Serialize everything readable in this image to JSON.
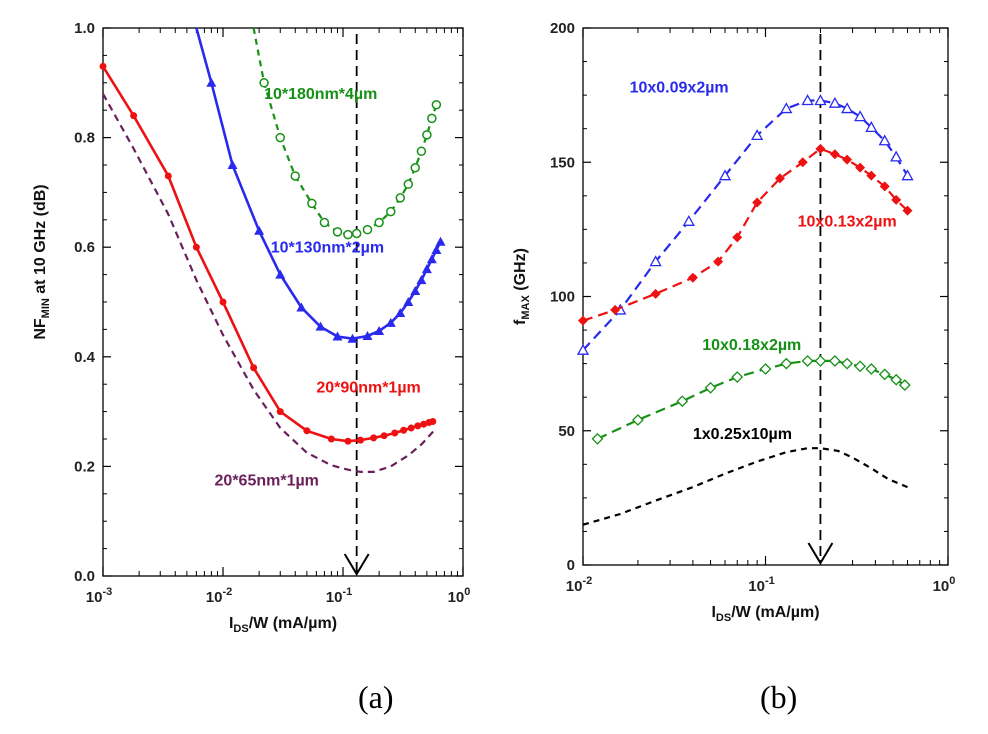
{
  "captions": [
    "(a)",
    "(b)"
  ],
  "colors": {
    "red": "#ee1111",
    "blue": "#2a2aee",
    "green": "#169116",
    "purple": "#6a1f5a",
    "black": "#000000"
  },
  "chart_data": [
    {
      "type": "line",
      "xscale": "log",
      "xlim": [
        0.001,
        1
      ],
      "ylim": [
        0.0,
        1.0
      ],
      "xticks": [
        0.001,
        0.01,
        0.1,
        1
      ],
      "xtick_labels": [
        [
          "10",
          "-3"
        ],
        [
          "10",
          "-2"
        ],
        [
          "10",
          "-1"
        ],
        [
          "10",
          "0"
        ]
      ],
      "yticks": [
        0.0,
        0.2,
        0.4,
        0.6,
        0.8,
        1.0
      ],
      "ytick_labels": [
        "0.0",
        "0.2",
        "0.4",
        "0.6",
        "0.8",
        "1.0"
      ],
      "xlabel": {
        "main": "I",
        "sub": "DS",
        "rest": "/W (mA/µm)"
      },
      "ylabel": {
        "main": "NF",
        "sub": "MIN",
        "rest": " at 10 GHz (dB)"
      },
      "marker_line_x": 0.13,
      "series": [
        {
          "name": "10*180nm*4µm",
          "color": "green",
          "dash": "6,5",
          "marker": "circle-open",
          "x": [
            0.018,
            0.022,
            0.03,
            0.04,
            0.055,
            0.07,
            0.09,
            0.11,
            0.13,
            0.16,
            0.2,
            0.25,
            0.3,
            0.35,
            0.4,
            0.45,
            0.5,
            0.55,
            0.6
          ],
          "y": [
            1.0,
            0.9,
            0.8,
            0.73,
            0.68,
            0.645,
            0.628,
            0.623,
            0.625,
            0.632,
            0.645,
            0.665,
            0.69,
            0.715,
            0.745,
            0.775,
            0.805,
            0.835,
            0.86
          ],
          "label_at": [
            0.022,
            0.87
          ]
        },
        {
          "name": "10*130nm*2µm",
          "color": "blue",
          "dash": "",
          "marker": "triangle",
          "x": [
            0.006,
            0.008,
            0.012,
            0.02,
            0.03,
            0.045,
            0.065,
            0.09,
            0.12,
            0.16,
            0.2,
            0.25,
            0.3,
            0.35,
            0.4,
            0.45,
            0.5,
            0.55,
            0.6,
            0.65
          ],
          "y": [
            1.0,
            0.9,
            0.75,
            0.63,
            0.55,
            0.49,
            0.455,
            0.437,
            0.433,
            0.438,
            0.447,
            0.462,
            0.48,
            0.5,
            0.52,
            0.54,
            0.56,
            0.578,
            0.595,
            0.61
          ],
          "label_at": [
            0.025,
            0.59
          ]
        },
        {
          "name": "20*90nm*1µm",
          "color": "red",
          "dash": "",
          "marker": "dot",
          "x": [
            0.001,
            0.0018,
            0.0035,
            0.006,
            0.01,
            0.018,
            0.03,
            0.05,
            0.08,
            0.11,
            0.14,
            0.18,
            0.22,
            0.27,
            0.32,
            0.37,
            0.42,
            0.47,
            0.52,
            0.56
          ],
          "y": [
            0.93,
            0.84,
            0.73,
            0.6,
            0.5,
            0.38,
            0.3,
            0.265,
            0.25,
            0.246,
            0.248,
            0.252,
            0.256,
            0.261,
            0.266,
            0.27,
            0.274,
            0.277,
            0.28,
            0.282
          ],
          "label_at": [
            0.06,
            0.335
          ]
        },
        {
          "name": "20*65nm*1µm",
          "color": "purple",
          "dash": "7,5",
          "marker": "none",
          "x": [
            0.001,
            0.0018,
            0.0035,
            0.006,
            0.01,
            0.018,
            0.03,
            0.05,
            0.08,
            0.11,
            0.14,
            0.18,
            0.25,
            0.35,
            0.45,
            0.6
          ],
          "y": [
            0.88,
            0.78,
            0.66,
            0.54,
            0.44,
            0.34,
            0.27,
            0.225,
            0.202,
            0.194,
            0.19,
            0.19,
            0.2,
            0.22,
            0.24,
            0.27
          ],
          "label_at": [
            0.0085,
            0.165
          ]
        }
      ]
    },
    {
      "type": "line",
      "xscale": "log",
      "xlim": [
        0.01,
        1
      ],
      "ylim": [
        0,
        200
      ],
      "xticks": [
        0.01,
        0.1,
        1
      ],
      "xtick_labels": [
        [
          "10",
          "-2"
        ],
        [
          "10",
          "-1"
        ],
        [
          "10",
          "0"
        ]
      ],
      "yticks": [
        0,
        50,
        100,
        150,
        200
      ],
      "ytick_labels": [
        "0",
        "50",
        "100",
        "150",
        "200"
      ],
      "xlabel": {
        "main": "I",
        "sub": "DS",
        "rest": "/W (mA/µm)"
      },
      "ylabel": {
        "main": "f",
        "sub": "MAX",
        "rest": "  (GHz)"
      },
      "marker_line_x": 0.2,
      "series": [
        {
          "name": "10x0.09x2µm",
          "color": "blue",
          "dash": "10,6",
          "marker": "triangle-open",
          "x": [
            0.01,
            0.016,
            0.025,
            0.038,
            0.06,
            0.09,
            0.13,
            0.17,
            0.2,
            0.24,
            0.28,
            0.33,
            0.38,
            0.45,
            0.52,
            0.6
          ],
          "y": [
            80,
            95,
            113,
            128,
            145,
            160,
            170,
            173,
            173,
            172,
            170,
            167,
            163,
            158,
            152,
            145
          ],
          "label_at": [
            0.018,
            176
          ]
        },
        {
          "name": "10x0.13x2µm",
          "color": "red",
          "dash": "10,6",
          "marker": "diamond",
          "x": [
            0.01,
            0.015,
            0.025,
            0.04,
            0.055,
            0.07,
            0.09,
            0.12,
            0.16,
            0.2,
            0.24,
            0.28,
            0.33,
            0.38,
            0.45,
            0.52,
            0.6
          ],
          "y": [
            91,
            95,
            101,
            107,
            113,
            122,
            135,
            144,
            150,
            155,
            153,
            151,
            148,
            145,
            141,
            136,
            132
          ],
          "label_at": [
            0.15,
            126
          ]
        },
        {
          "name": "10x0.18x2µm",
          "color": "green",
          "dash": "10,6",
          "marker": "diamond-open",
          "x": [
            0.012,
            0.02,
            0.035,
            0.05,
            0.07,
            0.1,
            0.13,
            0.17,
            0.2,
            0.24,
            0.28,
            0.33,
            0.38,
            0.45,
            0.52,
            0.58
          ],
          "y": [
            47,
            54,
            61,
            66,
            70,
            73,
            75,
            76,
            76,
            76,
            75,
            74,
            73,
            71,
            69,
            67
          ],
          "label_at": [
            0.045,
            80
          ]
        },
        {
          "name": "1x0.25x10µm",
          "color": "black",
          "dash": "6,5",
          "marker": "none",
          "x": [
            0.01,
            0.016,
            0.025,
            0.04,
            0.06,
            0.09,
            0.13,
            0.17,
            0.2,
            0.25,
            0.3,
            0.38,
            0.47,
            0.6
          ],
          "y": [
            15,
            19,
            24,
            29,
            34,
            38.5,
            42,
            43.5,
            43.5,
            42.5,
            40,
            36,
            32,
            29
          ],
          "label_at": [
            0.04,
            47
          ]
        }
      ]
    }
  ]
}
